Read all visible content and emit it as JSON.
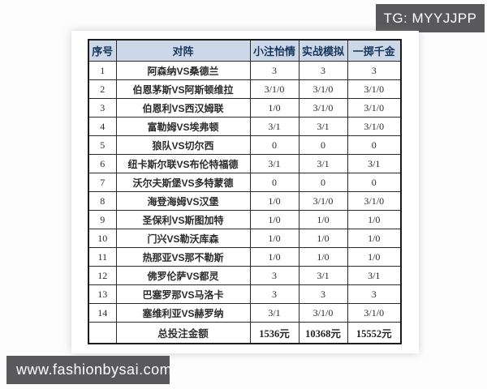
{
  "badges": {
    "telegram": "TG: MYYJJPP",
    "website": "www.fashionbysai.com"
  },
  "colors": {
    "badge_bg": "#59595b",
    "badge_text": "#ffffff",
    "header_bg": "#ccd8e8",
    "header_text": "#17365d",
    "table_border": "#1c1c1c",
    "cell_text": "#2b2b2b"
  },
  "table": {
    "headers": [
      "序号",
      "对阵",
      "小注怡情",
      "实战模拟",
      "一掷千金"
    ],
    "rows": [
      {
        "no": "1",
        "match": "阿森纳VS桑德兰",
        "c1": "3",
        "c2": "3",
        "c3": "3"
      },
      {
        "no": "2",
        "match": "伯恩茅斯VS阿斯顿维拉",
        "c1": "3/1/0",
        "c2": "3/1/0",
        "c3": "3/1/0"
      },
      {
        "no": "3",
        "match": "伯恩利VS西汉姆联",
        "c1": "1/0",
        "c2": "3/1/0",
        "c3": "3/1/0"
      },
      {
        "no": "4",
        "match": "富勒姆VS埃弗顿",
        "c1": "3/1",
        "c2": "3/1",
        "c3": "3/1/0"
      },
      {
        "no": "5",
        "match": "狼队VS切尔西",
        "c1": "0",
        "c2": "0",
        "c3": "0"
      },
      {
        "no": "6",
        "match": "纽卡斯尔联VS布伦特福德",
        "c1": "3/1",
        "c2": "3/1",
        "c3": "3/1"
      },
      {
        "no": "7",
        "match": "沃尔夫斯堡VS多特蒙德",
        "c1": "0",
        "c2": "0",
        "c3": "0"
      },
      {
        "no": "8",
        "match": "海登海姆VS汉堡",
        "c1": "1/0",
        "c2": "3/1/0",
        "c3": "3/1/0"
      },
      {
        "no": "9",
        "match": "圣保利VS斯图加特",
        "c1": "1/0",
        "c2": "1/0",
        "c3": "1/0"
      },
      {
        "no": "10",
        "match": "门兴VS勒沃库森",
        "c1": "1/0",
        "c2": "1/0",
        "c3": "1/0"
      },
      {
        "no": "11",
        "match": "热那亚VS那不勒斯",
        "c1": "1/0",
        "c2": "1/0",
        "c3": "1/0"
      },
      {
        "no": "12",
        "match": "佛罗伦萨VS都灵",
        "c1": "3",
        "c2": "3/1",
        "c3": "3/1"
      },
      {
        "no": "13",
        "match": "巴塞罗那VS马洛卡",
        "c1": "3",
        "c2": "3",
        "c3": "3"
      },
      {
        "no": "14",
        "match": "塞维利亚VS赫罗纳",
        "c1": "3/1",
        "c2": "3/1/0",
        "c3": "3/1/0"
      }
    ],
    "total": {
      "no": "",
      "label": "总投注金额",
      "c1": "1536元",
      "c2": "10368元",
      "c3": "15552元"
    }
  }
}
